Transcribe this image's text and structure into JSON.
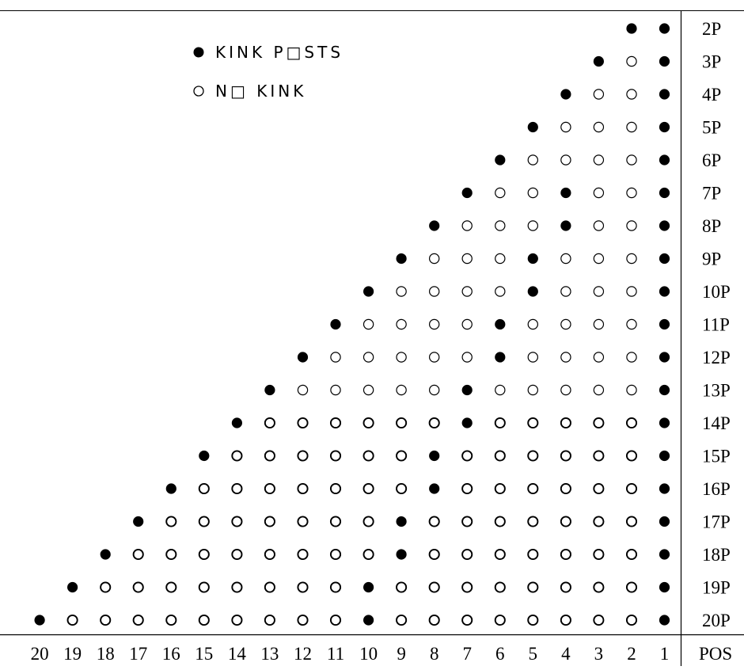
{
  "legend": {
    "kink_symbol": "●",
    "kink_label": "KINK P□STS",
    "nokink_symbol": "○",
    "nokink_label": "N□ KINK"
  },
  "axis_label": "POS",
  "columns": [
    "20",
    "19",
    "18",
    "17",
    "16",
    "15",
    "14",
    "13",
    "12",
    "11",
    "10",
    "9",
    "8",
    "7",
    "6",
    "5",
    "4",
    "3",
    "2",
    "1"
  ],
  "chart_data": {
    "type": "scatter",
    "xlabel": "POS",
    "columns": [
      20,
      19,
      18,
      17,
      16,
      15,
      14,
      13,
      12,
      11,
      10,
      9,
      8,
      7,
      6,
      5,
      4,
      3,
      2,
      1
    ],
    "series": [
      {
        "name": "KINK P□STS"
      },
      {
        "name": "N□ KINK"
      }
    ],
    "rows": [
      {
        "label": "2P",
        "n": 2,
        "kink": [
          2,
          1
        ]
      },
      {
        "label": "3P",
        "n": 3,
        "kink": [
          3,
          1
        ]
      },
      {
        "label": "4P",
        "n": 4,
        "kink": [
          4,
          1
        ]
      },
      {
        "label": "5P",
        "n": 5,
        "kink": [
          5,
          1
        ]
      },
      {
        "label": "6P",
        "n": 6,
        "kink": [
          6,
          1
        ]
      },
      {
        "label": "7P",
        "n": 7,
        "kink": [
          7,
          4,
          1
        ]
      },
      {
        "label": "8P",
        "n": 8,
        "kink": [
          8,
          4,
          1
        ]
      },
      {
        "label": "9P",
        "n": 9,
        "kink": [
          9,
          5,
          1
        ]
      },
      {
        "label": "10P",
        "n": 10,
        "kink": [
          10,
          5,
          1
        ]
      },
      {
        "label": "11P",
        "n": 11,
        "kink": [
          11,
          6,
          1
        ]
      },
      {
        "label": "12P",
        "n": 12,
        "kink": [
          12,
          6,
          1
        ]
      },
      {
        "label": "13P",
        "n": 13,
        "kink": [
          13,
          7,
          1
        ]
      },
      {
        "label": "14P",
        "n": 14,
        "kink": [
          14,
          7,
          1
        ]
      },
      {
        "label": "15P",
        "n": 15,
        "kink": [
          15,
          8,
          1
        ]
      },
      {
        "label": "16P",
        "n": 16,
        "kink": [
          16,
          8,
          1
        ]
      },
      {
        "label": "17P",
        "n": 17,
        "kink": [
          17,
          9,
          1
        ]
      },
      {
        "label": "18P",
        "n": 18,
        "kink": [
          18,
          9,
          1
        ]
      },
      {
        "label": "19P",
        "n": 19,
        "kink": [
          19,
          10,
          1
        ]
      },
      {
        "label": "20P",
        "n": 20,
        "kink": [
          20,
          10,
          1
        ]
      }
    ]
  }
}
